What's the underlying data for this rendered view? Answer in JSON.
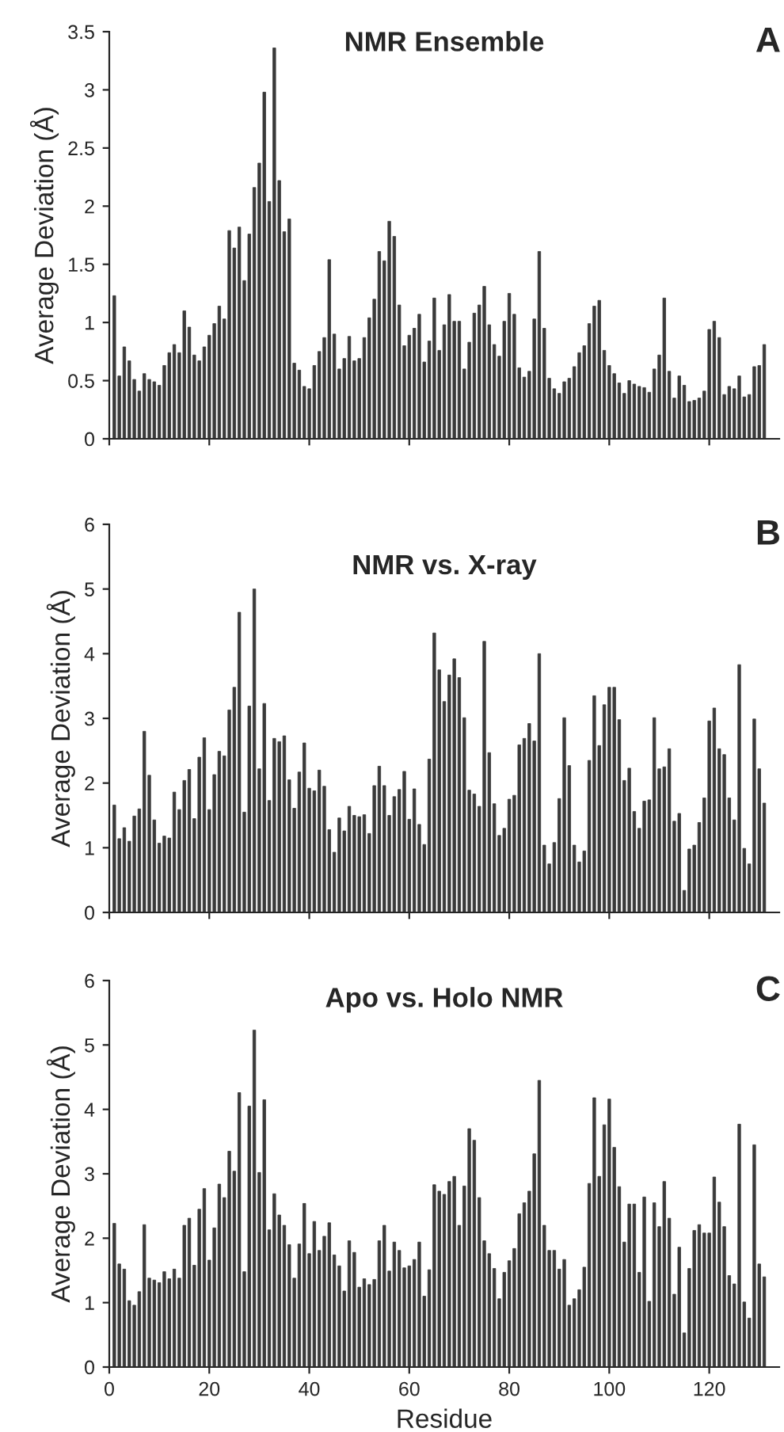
{
  "chart_data": [
    {
      "type": "bar",
      "title": "NMR Ensemble",
      "ylabel": "Average Deviation (Å)",
      "annotations": [
        "A"
      ],
      "tick_labels": "y",
      "grid": false,
      "legend": false,
      "x": [
        1,
        2,
        3,
        4,
        5,
        6,
        7,
        8,
        9,
        10,
        11,
        12,
        13,
        14,
        15,
        16,
        17,
        18,
        19,
        20,
        21,
        22,
        23,
        24,
        25,
        26,
        27,
        28,
        29,
        30,
        31,
        32,
        33,
        34,
        35,
        36,
        37,
        38,
        39,
        40,
        41,
        42,
        43,
        44,
        45,
        46,
        47,
        48,
        49,
        50,
        51,
        52,
        53,
        54,
        55,
        56,
        57,
        58,
        59,
        60,
        61,
        62,
        63,
        64,
        65,
        66,
        67,
        68,
        69,
        70,
        71,
        72,
        73,
        74,
        75,
        76,
        77,
        78,
        79,
        80,
        81,
        82,
        83,
        84,
        85,
        86,
        87,
        88,
        89,
        90,
        91,
        92,
        93,
        94,
        95,
        96,
        97,
        98,
        99,
        100,
        101,
        102,
        103,
        104,
        105,
        106,
        107,
        108,
        109,
        110,
        111,
        112,
        113,
        114,
        115,
        116,
        117,
        118,
        119,
        120,
        121,
        122,
        123,
        124,
        125,
        126,
        127,
        128,
        129,
        130,
        131
      ],
      "series": [
        {
          "color": "#3a3a3a",
          "values": [
            1.23,
            0.54,
            0.79,
            0.67,
            0.51,
            0.41,
            0.56,
            0.51,
            0.49,
            0.46,
            0.63,
            0.74,
            0.81,
            0.74,
            1.1,
            0.96,
            0.72,
            0.67,
            0.79,
            0.89,
            0.99,
            1.14,
            1.03,
            1.79,
            1.64,
            1.82,
            1.36,
            1.76,
            2.16,
            2.37,
            2.98,
            2.04,
            3.36,
            2.22,
            1.78,
            1.89,
            0.65,
            0.59,
            0.45,
            0.43,
            0.63,
            0.75,
            0.87,
            1.54,
            0.9,
            0.6,
            0.69,
            0.88,
            0.67,
            0.69,
            0.87,
            1.04,
            1.2,
            1.61,
            1.53,
            1.87,
            1.74,
            1.15,
            0.8,
            0.89,
            0.95,
            1.07,
            0.66,
            0.84,
            1.21,
            0.76,
            0.98,
            1.24,
            1.01,
            1.01,
            0.6,
            0.83,
            1.08,
            1.15,
            1.31,
            0.98,
            0.81,
            0.71,
            1.01,
            1.25,
            1.07,
            0.61,
            0.53,
            0.58,
            1.03,
            1.61,
            0.95,
            0.52,
            0.43,
            0.39,
            0.49,
            0.52,
            0.62,
            0.74,
            0.8,
            0.99,
            1.14,
            1.19,
            0.76,
            0.63,
            0.56,
            0.48,
            0.39,
            0.5,
            0.47,
            0.45,
            0.44,
            0.4,
            0.6,
            0.72,
            1.21,
            0.58,
            0.35,
            0.54,
            0.46,
            0.32,
            0.33,
            0.35,
            0.41,
            0.94,
            1.01,
            0.87,
            0.38,
            0.45,
            0.43,
            0.54,
            0.36,
            0.38,
            0.62,
            0.63,
            0.81
          ]
        }
      ],
      "xlim": [
        0,
        134
      ],
      "xticks": [
        0,
        20,
        40,
        60,
        80,
        100,
        120
      ],
      "ylim": [
        0,
        3.5
      ],
      "yticks": [
        0,
        0.5,
        1,
        1.5,
        2,
        2.5,
        3,
        3.5
      ]
    },
    {
      "type": "bar",
      "title": "NMR vs. X-ray",
      "ylabel": "Average Deviation (Å)",
      "annotations": [
        "B"
      ],
      "tick_labels": "y",
      "grid": false,
      "legend": false,
      "x": [
        1,
        2,
        3,
        4,
        5,
        6,
        7,
        8,
        9,
        10,
        11,
        12,
        13,
        14,
        15,
        16,
        17,
        18,
        19,
        20,
        21,
        22,
        23,
        24,
        25,
        26,
        27,
        28,
        29,
        30,
        31,
        32,
        33,
        34,
        35,
        36,
        37,
        38,
        39,
        40,
        41,
        42,
        43,
        44,
        45,
        46,
        47,
        48,
        49,
        50,
        51,
        52,
        53,
        54,
        55,
        56,
        57,
        58,
        59,
        60,
        61,
        62,
        63,
        64,
        65,
        66,
        67,
        68,
        69,
        70,
        71,
        72,
        73,
        74,
        75,
        76,
        77,
        78,
        79,
        80,
        81,
        82,
        83,
        84,
        85,
        86,
        87,
        88,
        89,
        90,
        91,
        92,
        93,
        94,
        95,
        96,
        97,
        98,
        99,
        100,
        101,
        102,
        103,
        104,
        105,
        106,
        107,
        108,
        109,
        110,
        111,
        112,
        113,
        114,
        115,
        116,
        117,
        118,
        119,
        120,
        121,
        122,
        123,
        124,
        125,
        126,
        127,
        128,
        129,
        130,
        131
      ],
      "series": [
        {
          "color": "#3a3a3a",
          "values": [
            1.66,
            1.14,
            1.31,
            1.1,
            1.49,
            1.6,
            2.8,
            2.12,
            1.43,
            1.07,
            1.18,
            1.15,
            1.86,
            1.59,
            2.04,
            2.21,
            1.45,
            2.4,
            2.7,
            1.59,
            2.13,
            2.49,
            2.42,
            3.13,
            3.48,
            4.64,
            1.55,
            3.19,
            5.0,
            2.22,
            3.23,
            1.73,
            2.69,
            2.64,
            2.73,
            2.05,
            1.61,
            2.17,
            2.62,
            1.92,
            1.88,
            2.2,
            1.95,
            1.28,
            0.93,
            1.46,
            1.26,
            1.64,
            1.5,
            1.48,
            1.51,
            1.22,
            1.96,
            2.26,
            1.96,
            1.5,
            1.79,
            1.9,
            2.18,
            1.44,
            1.91,
            1.36,
            1.05,
            2.37,
            4.32,
            3.75,
            3.26,
            3.67,
            3.92,
            3.63,
            3.01,
            1.89,
            1.83,
            1.64,
            4.19,
            2.47,
            1.68,
            1.19,
            1.3,
            1.75,
            1.81,
            2.59,
            2.69,
            2.92,
            2.65,
            4.0,
            1.04,
            0.75,
            1.08,
            1.76,
            3.01,
            2.27,
            1.04,
            0.78,
            0.95,
            2.35,
            3.35,
            2.58,
            3.21,
            3.48,
            3.48,
            2.98,
            2.04,
            2.23,
            1.56,
            1.3,
            1.72,
            1.74,
            3.01,
            2.22,
            2.25,
            2.53,
            1.41,
            1.53,
            0.34,
            0.98,
            1.04,
            1.39,
            1.77,
            2.96,
            3.16,
            2.53,
            2.44,
            1.77,
            1.43,
            3.83,
            0.99,
            0.75,
            2.99,
            2.22,
            1.69
          ]
        }
      ],
      "xlim": [
        0,
        134
      ],
      "xticks": [
        0,
        20,
        40,
        60,
        80,
        100,
        120
      ],
      "ylim": [
        0,
        6
      ],
      "yticks": [
        0,
        1,
        2,
        3,
        4,
        5,
        6
      ]
    },
    {
      "type": "bar",
      "title": "Apo vs. Holo NMR",
      "xlabel": "Residue",
      "ylabel": "Average Deviation (Å)",
      "annotations": [
        "C"
      ],
      "grid": false,
      "legend": false,
      "x": [
        1,
        2,
        3,
        4,
        5,
        6,
        7,
        8,
        9,
        10,
        11,
        12,
        13,
        14,
        15,
        16,
        17,
        18,
        19,
        20,
        21,
        22,
        23,
        24,
        25,
        26,
        27,
        28,
        29,
        30,
        31,
        32,
        33,
        34,
        35,
        36,
        37,
        38,
        39,
        40,
        41,
        42,
        43,
        44,
        45,
        46,
        47,
        48,
        49,
        50,
        51,
        52,
        53,
        54,
        55,
        56,
        57,
        58,
        59,
        60,
        61,
        62,
        63,
        64,
        65,
        66,
        67,
        68,
        69,
        70,
        71,
        72,
        73,
        74,
        75,
        76,
        77,
        78,
        79,
        80,
        81,
        82,
        83,
        84,
        85,
        86,
        87,
        88,
        89,
        90,
        91,
        92,
        93,
        94,
        95,
        96,
        97,
        98,
        99,
        100,
        101,
        102,
        103,
        104,
        105,
        106,
        107,
        108,
        109,
        110,
        111,
        112,
        113,
        114,
        115,
        116,
        117,
        118,
        119,
        120,
        121,
        122,
        123,
        124,
        125,
        126,
        127,
        128,
        129,
        130,
        131
      ],
      "series": [
        {
          "color": "#3a3a3a",
          "values": [
            2.23,
            1.6,
            1.52,
            1.03,
            0.96,
            1.17,
            2.21,
            1.38,
            1.35,
            1.31,
            1.48,
            1.37,
            1.52,
            1.38,
            2.2,
            2.31,
            1.58,
            2.45,
            2.77,
            1.66,
            2.16,
            2.84,
            2.63,
            3.35,
            3.04,
            4.26,
            1.48,
            4.05,
            5.23,
            3.02,
            4.15,
            2.13,
            2.69,
            2.36,
            2.2,
            1.9,
            1.38,
            1.91,
            2.54,
            1.76,
            2.26,
            1.81,
            2.03,
            2.24,
            1.74,
            1.57,
            1.18,
            1.96,
            1.78,
            1.24,
            1.37,
            1.28,
            1.36,
            1.96,
            2.2,
            1.49,
            1.94,
            1.81,
            1.54,
            1.57,
            1.67,
            1.94,
            1.1,
            1.51,
            2.83,
            2.73,
            2.68,
            2.88,
            2.96,
            2.2,
            2.81,
            3.7,
            3.52,
            2.63,
            1.96,
            1.76,
            1.53,
            1.06,
            1.47,
            1.65,
            1.84,
            2.38,
            2.55,
            2.73,
            3.31,
            4.45,
            2.2,
            1.81,
            1.81,
            1.52,
            1.67,
            0.96,
            1.06,
            1.2,
            1.55,
            2.85,
            4.18,
            2.96,
            3.76,
            4.16,
            3.41,
            2.8,
            1.94,
            2.53,
            2.53,
            1.47,
            2.64,
            1.02,
            2.55,
            2.18,
            2.88,
            2.31,
            1.13,
            1.86,
            0.53,
            1.53,
            2.12,
            2.21,
            2.08,
            2.08,
            2.95,
            2.56,
            2.18,
            1.42,
            1.29,
            3.77,
            1.01,
            0.76,
            3.45,
            1.6,
            1.4
          ]
        }
      ],
      "xlim": [
        0,
        134
      ],
      "xticks": [
        0,
        20,
        40,
        60,
        80,
        100,
        120
      ],
      "ylim": [
        0,
        6
      ],
      "yticks": [
        0,
        1,
        2,
        3,
        4,
        5,
        6
      ]
    }
  ]
}
